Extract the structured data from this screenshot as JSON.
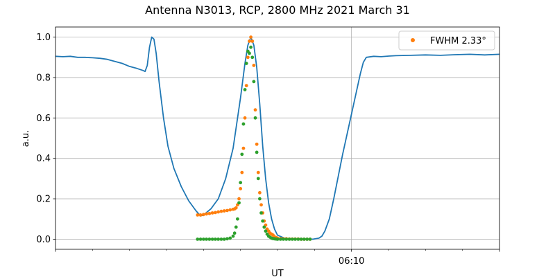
{
  "chart_data": {
    "type": "line",
    "title": "Antenna N3013, RCP, 2800 MHz 2021 March 31",
    "xlabel": "UT",
    "ylabel": "a.u.",
    "x_unit": "minutes",
    "xlim": [
      0,
      30
    ],
    "ylim": [
      -0.05,
      1.05
    ],
    "x_tick_labels": [
      {
        "x": 20,
        "label": "06:10"
      }
    ],
    "x_major_ticks": [
      0,
      20,
      30
    ],
    "x_minor_ticks": [
      2.5,
      5,
      7.5,
      10,
      12.5,
      15,
      17.5,
      22.5,
      25,
      27.5
    ],
    "y_ticks": [
      0.0,
      0.2,
      0.4,
      0.6,
      0.8,
      1.0
    ],
    "y_tick_labels": [
      "0.0",
      "0.2",
      "0.4",
      "0.6",
      "0.8",
      "1.0"
    ],
    "grid": true,
    "legend_position": "upper-right",
    "legend": [
      {
        "label": "FWHM 2.33$^\\circ$",
        "display": "FWHM 2.33°",
        "color": "#ff7f0e"
      }
    ],
    "series": [
      {
        "kind": "line",
        "color": "#1f77b4",
        "x": [
          0,
          0.5,
          1,
          1.5,
          2,
          2.5,
          3,
          3.5,
          4,
          4.5,
          5,
          5.5,
          5.9,
          6.05,
          6.2,
          6.35,
          6.5,
          6.65,
          6.8,
          7.0,
          7.3,
          7.6,
          8.0,
          8.5,
          9.0,
          9.5,
          9.8,
          10.0,
          10.5,
          11.0,
          11.5,
          12.0,
          12.5,
          12.8,
          13.0,
          13.2,
          13.4,
          13.6,
          13.8,
          14.0,
          14.2,
          14.4,
          14.6,
          14.8,
          15.0,
          15.5,
          16.0,
          16.5,
          17.0,
          17.4,
          17.8,
          18.0,
          18.2,
          18.5,
          18.8,
          19.1,
          19.4,
          19.7,
          20.0,
          20.3,
          20.6,
          20.8,
          21.0,
          21.5,
          22.0,
          22.5,
          23.0,
          24.0,
          25.0,
          26.0,
          27.0,
          28.0,
          29.0,
          30.0
        ],
        "y": [
          0.905,
          0.903,
          0.905,
          0.9,
          0.9,
          0.898,
          0.895,
          0.89,
          0.88,
          0.87,
          0.855,
          0.845,
          0.835,
          0.83,
          0.86,
          0.95,
          1.0,
          0.99,
          0.92,
          0.78,
          0.6,
          0.46,
          0.35,
          0.26,
          0.19,
          0.14,
          0.115,
          0.12,
          0.15,
          0.2,
          0.3,
          0.45,
          0.7,
          0.87,
          0.96,
          1.0,
          0.96,
          0.85,
          0.67,
          0.46,
          0.3,
          0.18,
          0.1,
          0.05,
          0.02,
          0.004,
          0.0,
          0.0,
          0.0,
          0.0,
          0.005,
          0.015,
          0.04,
          0.1,
          0.2,
          0.31,
          0.42,
          0.52,
          0.62,
          0.72,
          0.82,
          0.875,
          0.9,
          0.905,
          0.903,
          0.906,
          0.908,
          0.91,
          0.912,
          0.91,
          0.913,
          0.915,
          0.912,
          0.915
        ]
      },
      {
        "kind": "scatter",
        "name": "FWHM 2.33°",
        "color": "#ff7f0e",
        "x": [
          9.6,
          9.8,
          10.0,
          10.2,
          10.4,
          10.6,
          10.8,
          11.0,
          11.2,
          11.4,
          11.6,
          11.8,
          12.0,
          12.1,
          12.2,
          12.3,
          12.4,
          12.5,
          12.6,
          12.7,
          12.8,
          12.9,
          13.0,
          13.1,
          13.2,
          13.3,
          13.4,
          13.5,
          13.6,
          13.7,
          13.8,
          13.9,
          14.0,
          14.1,
          14.2,
          14.3,
          14.4,
          14.5,
          14.6,
          14.7,
          14.8,
          14.9,
          15.0,
          15.2,
          15.4,
          15.6,
          15.8,
          16.0,
          16.2,
          16.4,
          16.6,
          16.8,
          17.0,
          17.2
        ],
        "y": [
          0.12,
          0.12,
          0.122,
          0.125,
          0.127,
          0.13,
          0.132,
          0.135,
          0.138,
          0.14,
          0.142,
          0.145,
          0.148,
          0.15,
          0.155,
          0.17,
          0.2,
          0.25,
          0.33,
          0.45,
          0.6,
          0.76,
          0.9,
          0.98,
          1.0,
          0.98,
          0.86,
          0.64,
          0.47,
          0.33,
          0.23,
          0.17,
          0.13,
          0.09,
          0.07,
          0.05,
          0.04,
          0.03,
          0.025,
          0.02,
          0.012,
          0.008,
          0.005,
          0.003,
          0.002,
          0.002,
          0.001,
          0.001,
          0.001,
          0.001,
          0.0,
          0.0,
          0.0,
          0.0
        ]
      },
      {
        "kind": "scatter",
        "color": "#2ca02c",
        "x": [
          9.6,
          9.8,
          10.0,
          10.2,
          10.4,
          10.6,
          10.8,
          11.0,
          11.2,
          11.4,
          11.6,
          11.8,
          12.0,
          12.1,
          12.2,
          12.3,
          12.4,
          12.5,
          12.6,
          12.7,
          12.8,
          12.9,
          13.0,
          13.1,
          13.2,
          13.3,
          13.4,
          13.5,
          13.6,
          13.7,
          13.8,
          13.9,
          14.0,
          14.1,
          14.2,
          14.3,
          14.4,
          14.5,
          14.6,
          14.7,
          14.8,
          14.9,
          15.0,
          15.2,
          15.4,
          15.6,
          15.8,
          16.0,
          16.2,
          16.4,
          16.6,
          16.8,
          17.0,
          17.2
        ],
        "y": [
          0.0,
          0.0,
          0.0,
          0.0,
          0.0,
          0.0,
          0.0,
          0.0,
          0.0,
          0.0,
          0.002,
          0.005,
          0.015,
          0.03,
          0.06,
          0.1,
          0.18,
          0.28,
          0.42,
          0.57,
          0.74,
          0.87,
          0.93,
          0.92,
          0.95,
          0.9,
          0.78,
          0.6,
          0.43,
          0.3,
          0.2,
          0.13,
          0.09,
          0.06,
          0.04,
          0.025,
          0.015,
          0.01,
          0.005,
          0.003,
          0.002,
          0.001,
          0.0,
          0.0,
          0.0,
          0.0,
          0.0,
          0.0,
          0.0,
          0.0,
          0.0,
          0.0,
          0.0,
          0.0
        ]
      }
    ]
  }
}
